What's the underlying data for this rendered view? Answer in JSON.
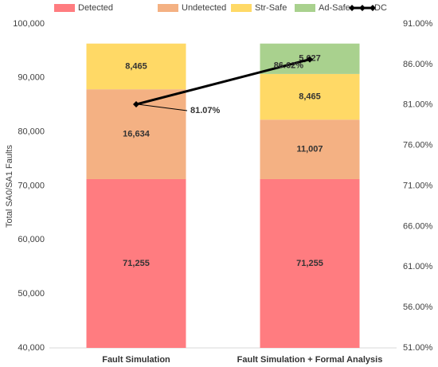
{
  "chart_data": {
    "type": "bar",
    "stacked": true,
    "categories": [
      "Fault Simulation",
      "Fault Simulation + Formal Analysis"
    ],
    "ylabel": "Total SA0/SA1 Faults",
    "ylim": [
      40000,
      100000
    ],
    "yticks": [
      {
        "value": 40000,
        "label": "40,000"
      },
      {
        "value": 50000,
        "label": "50,000"
      },
      {
        "value": 60000,
        "label": "60,000"
      },
      {
        "value": 70000,
        "label": "70,000"
      },
      {
        "value": 80000,
        "label": "80,000"
      },
      {
        "value": 90000,
        "label": "90,000"
      },
      {
        "value": 100000,
        "label": "100,000"
      }
    ],
    "y2lim": [
      51,
      91
    ],
    "y2ticks": [
      {
        "value": 51,
        "label": "51.00%"
      },
      {
        "value": 56,
        "label": "56.00%"
      },
      {
        "value": 61,
        "label": "61.00%"
      },
      {
        "value": 66,
        "label": "66.00%"
      },
      {
        "value": 71,
        "label": "71.00%"
      },
      {
        "value": 76,
        "label": "76.00%"
      },
      {
        "value": 81,
        "label": "81.00%"
      },
      {
        "value": 86,
        "label": "86.00%"
      },
      {
        "value": 91,
        "label": "91.00%"
      }
    ],
    "series": [
      {
        "name": "Detected",
        "color": "#ff7c80",
        "values": [
          71255,
          71255
        ],
        "value_labels": [
          "71,255",
          "71,255"
        ]
      },
      {
        "name": "Undetected",
        "color": "#f4b183",
        "values": [
          16634,
          11007
        ],
        "value_labels": [
          "16,634",
          "11,007"
        ]
      },
      {
        "name": "Str-Safe",
        "color": "#ffd966",
        "values": [
          8465,
          8465
        ],
        "value_labels": [
          "8,465",
          "8,465"
        ]
      },
      {
        "name": "Ad-Safe",
        "color": "#a9d18e",
        "values": [
          null,
          5627
        ],
        "value_labels": [
          null,
          "5,627"
        ]
      },
      {
        "name": "DC",
        "color": "#000000",
        "type": "line",
        "axis": "y2",
        "values": [
          81.07,
          86.62
        ],
        "value_labels": [
          "81.07%",
          "86.62%"
        ]
      }
    ]
  }
}
